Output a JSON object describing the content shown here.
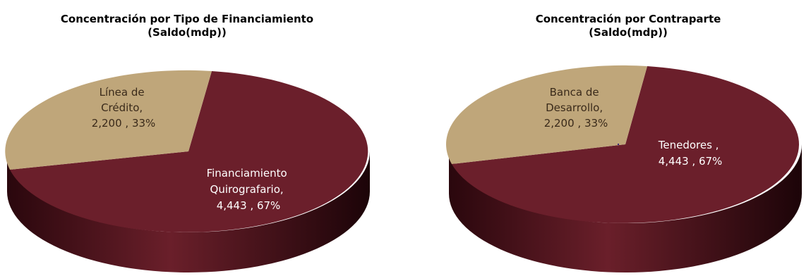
{
  "colors": {
    "primary": "#6b1f2b",
    "primary_side": "#3d0d15",
    "secondary": "#bfa67a",
    "secondary_side": "#8a7450",
    "label_on_primary": "#ffffff",
    "label_on_secondary": "#3a2a1a"
  },
  "chart_data": [
    {
      "type": "pie",
      "style": "3d",
      "title_line1": "Concentración por Tipo de Financiamiento",
      "title_line2": "(Saldo(mdp))",
      "slices": [
        {
          "name": "Línea de Crédito",
          "value": 2200,
          "percent": 33,
          "label_lines": [
            "Línea de",
            "Crédito,",
            "2,200 , 33%"
          ],
          "color": "#bfa67a"
        },
        {
          "name": "Financiamiento Quirografario",
          "value": 4443,
          "percent": 67,
          "label_lines": [
            "Financiamiento",
            "Quirografario,",
            "4,443 , 67%"
          ],
          "color": "#6b1f2b"
        }
      ]
    },
    {
      "type": "pie",
      "style": "3d",
      "title_line1": "Concentración por Contraparte",
      "title_line2": "(Saldo(mdp))",
      "slices": [
        {
          "name": "Banca de Desarrollo",
          "value": 2200,
          "percent": 33,
          "label_lines": [
            "Banca de",
            "Desarrollo,",
            "2,200 , 33%"
          ],
          "color": "#bfa67a"
        },
        {
          "name": "Tenedores",
          "value": 4443,
          "percent": 67,
          "label_lines": [
            "Tenedores ,",
            "4,443 , 67%"
          ],
          "color": "#6b1f2b"
        }
      ]
    }
  ]
}
